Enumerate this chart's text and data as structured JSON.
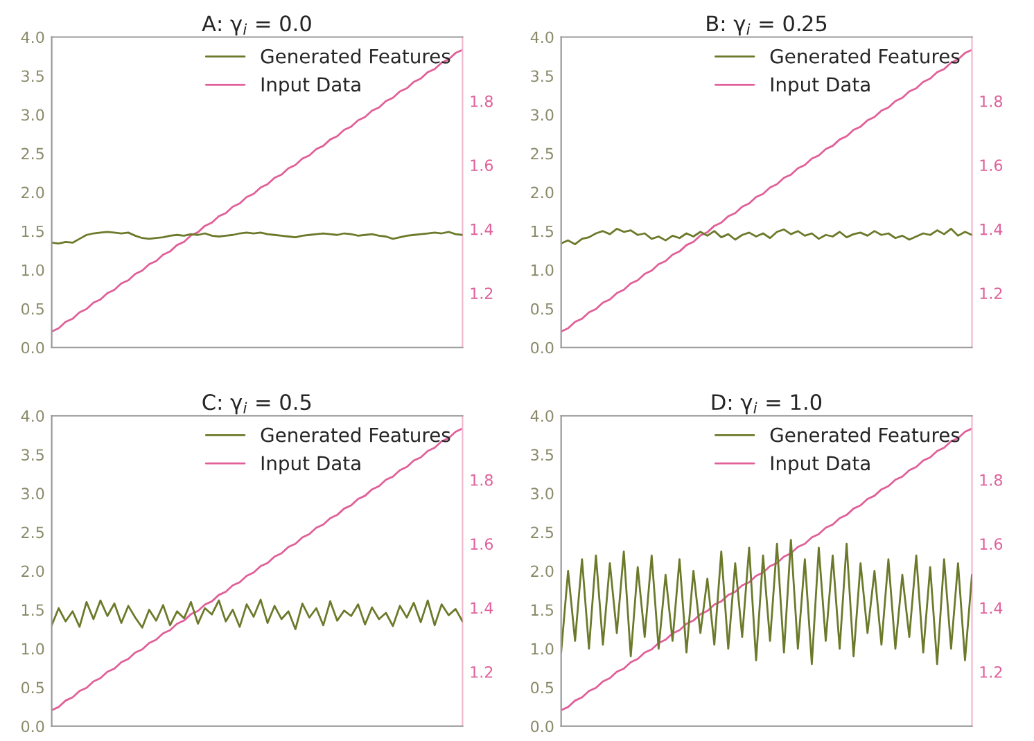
{
  "chart_data": [
    {
      "type": "line",
      "title": "A: γ$_{i}$ = 0.0",
      "legend": "top right",
      "categories": [
        null,
        null,
        null,
        null,
        null,
        null,
        null,
        null,
        null,
        null,
        null,
        null,
        null,
        null,
        null,
        null,
        null,
        null,
        null,
        null,
        null,
        null,
        null,
        null,
        null,
        null,
        null,
        null,
        null,
        null,
        null,
        null,
        null,
        null,
        null,
        null,
        null,
        null,
        null,
        null,
        null,
        null,
        null,
        null,
        null,
        null,
        null,
        null,
        null,
        null,
        null,
        null,
        null,
        null,
        null,
        null,
        null,
        null,
        null,
        null
      ],
      "series": [
        {
          "name": "Generated Features",
          "color": "#6b7a2a",
          "values": [
            1.35,
            1.34,
            1.36,
            1.35,
            1.4,
            1.45,
            1.47,
            1.48,
            1.49,
            1.48,
            1.47,
            1.48,
            1.44,
            1.41,
            1.4,
            1.41,
            1.42,
            1.44,
            1.45,
            1.44,
            1.46,
            1.45,
            1.47,
            1.44,
            1.43,
            1.44,
            1.45,
            1.47,
            1.48,
            1.47,
            1.48,
            1.46,
            1.45,
            1.44,
            1.43,
            1.42,
            1.44,
            1.45,
            1.46,
            1.47,
            1.46,
            1.45,
            1.47,
            1.46,
            1.44,
            1.45,
            1.46,
            1.44,
            1.43,
            1.4,
            1.42,
            1.44,
            1.45,
            1.46,
            1.47,
            1.48,
            1.47,
            1.49,
            1.46,
            1.45
          ]
        },
        {
          "name": "Input Data",
          "color": "#e0609a",
          "axis": "y2",
          "values": [
            1.08,
            1.09,
            1.11,
            1.12,
            1.14,
            1.15,
            1.17,
            1.18,
            1.2,
            1.21,
            1.23,
            1.24,
            1.26,
            1.27,
            1.29,
            1.3,
            1.32,
            1.33,
            1.35,
            1.36,
            1.38,
            1.39,
            1.41,
            1.42,
            1.44,
            1.45,
            1.47,
            1.48,
            1.5,
            1.51,
            1.53,
            1.54,
            1.56,
            1.57,
            1.59,
            1.6,
            1.62,
            1.63,
            1.65,
            1.66,
            1.68,
            1.69,
            1.71,
            1.72,
            1.74,
            1.75,
            1.77,
            1.78,
            1.8,
            1.81,
            1.83,
            1.84,
            1.86,
            1.87,
            1.89,
            1.9,
            1.92,
            1.93,
            1.95,
            1.96
          ]
        }
      ],
      "ylim": [
        0,
        4
      ],
      "yticks": [
        {
          "value": 0,
          "label": "0.0"
        },
        {
          "value": 0.5,
          "label": "0.5"
        },
        {
          "value": 1,
          "label": "1.0"
        },
        {
          "value": 1.5,
          "label": "1.5"
        },
        {
          "value": 2,
          "label": "2.0"
        },
        {
          "value": 2.5,
          "label": "2.5"
        },
        {
          "value": 3,
          "label": "3.0"
        },
        {
          "value": 3.5,
          "label": "3.5"
        },
        {
          "value": 4,
          "label": "4.0"
        }
      ],
      "y2lim": [
        1.03,
        2.0
      ],
      "y2ticks": [
        1.2,
        1.4,
        1.6,
        1.8
      ]
    },
    {
      "type": "line",
      "title": "B: γ$_{i}$ = 0.25",
      "legend": "top right",
      "categories": [
        null,
        null,
        null,
        null,
        null,
        null,
        null,
        null,
        null,
        null,
        null,
        null,
        null,
        null,
        null,
        null,
        null,
        null,
        null,
        null,
        null,
        null,
        null,
        null,
        null,
        null,
        null,
        null,
        null,
        null,
        null,
        null,
        null,
        null,
        null,
        null,
        null,
        null,
        null,
        null,
        null,
        null,
        null,
        null,
        null,
        null,
        null,
        null,
        null,
        null,
        null,
        null,
        null,
        null,
        null,
        null,
        null,
        null,
        null,
        null
      ],
      "series": [
        {
          "name": "Generated Features",
          "color": "#6b7a2a",
          "values": [
            1.34,
            1.38,
            1.33,
            1.4,
            1.42,
            1.47,
            1.5,
            1.46,
            1.53,
            1.49,
            1.51,
            1.45,
            1.47,
            1.4,
            1.43,
            1.38,
            1.44,
            1.41,
            1.47,
            1.43,
            1.49,
            1.44,
            1.5,
            1.42,
            1.46,
            1.39,
            1.45,
            1.48,
            1.43,
            1.47,
            1.41,
            1.49,
            1.52,
            1.46,
            1.5,
            1.44,
            1.47,
            1.4,
            1.45,
            1.43,
            1.49,
            1.42,
            1.46,
            1.48,
            1.44,
            1.5,
            1.45,
            1.47,
            1.41,
            1.44,
            1.39,
            1.43,
            1.47,
            1.45,
            1.51,
            1.46,
            1.53,
            1.44,
            1.49,
            1.45
          ]
        },
        {
          "name": "Input Data",
          "color": "#e0609a",
          "axis": "y2",
          "values": [
            1.08,
            1.09,
            1.11,
            1.12,
            1.14,
            1.15,
            1.17,
            1.18,
            1.2,
            1.21,
            1.23,
            1.24,
            1.26,
            1.27,
            1.29,
            1.3,
            1.32,
            1.33,
            1.35,
            1.36,
            1.38,
            1.39,
            1.41,
            1.42,
            1.44,
            1.45,
            1.47,
            1.48,
            1.5,
            1.51,
            1.53,
            1.54,
            1.56,
            1.57,
            1.59,
            1.6,
            1.62,
            1.63,
            1.65,
            1.66,
            1.68,
            1.69,
            1.71,
            1.72,
            1.74,
            1.75,
            1.77,
            1.78,
            1.8,
            1.81,
            1.83,
            1.84,
            1.86,
            1.87,
            1.89,
            1.9,
            1.92,
            1.93,
            1.95,
            1.96
          ]
        }
      ],
      "ylim": [
        0,
        4
      ],
      "yticks": [
        {
          "value": 0,
          "label": "0.0"
        },
        {
          "value": 0.5,
          "label": "0.5"
        },
        {
          "value": 1,
          "label": "1.0"
        },
        {
          "value": 1.5,
          "label": "1.5"
        },
        {
          "value": 2,
          "label": "2.0"
        },
        {
          "value": 2.5,
          "label": "2.5"
        },
        {
          "value": 3,
          "label": "3.0"
        },
        {
          "value": 3.5,
          "label": "3.5"
        },
        {
          "value": 4,
          "label": "4.0"
        }
      ],
      "y2lim": [
        1.03,
        2.0
      ],
      "y2ticks": [
        1.2,
        1.4,
        1.6,
        1.8
      ]
    },
    {
      "type": "line",
      "title": "C: γ$_{i}$ = 0.5",
      "legend": "top right",
      "categories": [
        null,
        null,
        null,
        null,
        null,
        null,
        null,
        null,
        null,
        null,
        null,
        null,
        null,
        null,
        null,
        null,
        null,
        null,
        null,
        null,
        null,
        null,
        null,
        null,
        null,
        null,
        null,
        null,
        null,
        null,
        null,
        null,
        null,
        null,
        null,
        null,
        null,
        null,
        null,
        null,
        null,
        null,
        null,
        null,
        null,
        null,
        null,
        null,
        null,
        null,
        null,
        null,
        null,
        null,
        null,
        null,
        null,
        null,
        null,
        null
      ],
      "series": [
        {
          "name": "Generated Features",
          "color": "#6b7a2a",
          "values": [
            1.3,
            1.52,
            1.35,
            1.48,
            1.28,
            1.6,
            1.38,
            1.62,
            1.42,
            1.58,
            1.33,
            1.55,
            1.4,
            1.27,
            1.5,
            1.36,
            1.56,
            1.3,
            1.48,
            1.39,
            1.6,
            1.32,
            1.52,
            1.44,
            1.62,
            1.35,
            1.5,
            1.28,
            1.57,
            1.41,
            1.63,
            1.33,
            1.55,
            1.38,
            1.48,
            1.25,
            1.58,
            1.4,
            1.52,
            1.3,
            1.61,
            1.36,
            1.49,
            1.42,
            1.57,
            1.31,
            1.53,
            1.38,
            1.46,
            1.29,
            1.55,
            1.4,
            1.59,
            1.34,
            1.62,
            1.3,
            1.57,
            1.43,
            1.51,
            1.35
          ]
        },
        {
          "name": "Input Data",
          "color": "#e0609a",
          "axis": "y2",
          "values": [
            1.08,
            1.09,
            1.11,
            1.12,
            1.14,
            1.15,
            1.17,
            1.18,
            1.2,
            1.21,
            1.23,
            1.24,
            1.26,
            1.27,
            1.29,
            1.3,
            1.32,
            1.33,
            1.35,
            1.36,
            1.38,
            1.39,
            1.41,
            1.42,
            1.44,
            1.45,
            1.47,
            1.48,
            1.5,
            1.51,
            1.53,
            1.54,
            1.56,
            1.57,
            1.59,
            1.6,
            1.62,
            1.63,
            1.65,
            1.66,
            1.68,
            1.69,
            1.71,
            1.72,
            1.74,
            1.75,
            1.77,
            1.78,
            1.8,
            1.81,
            1.83,
            1.84,
            1.86,
            1.87,
            1.89,
            1.9,
            1.92,
            1.93,
            1.95,
            1.96
          ]
        }
      ],
      "ylim": [
        0,
        4
      ],
      "yticks": [
        {
          "value": 0,
          "label": "0.0"
        },
        {
          "value": 0.5,
          "label": "0.5"
        },
        {
          "value": 1,
          "label": "1.0"
        },
        {
          "value": 1.5,
          "label": "1.5"
        },
        {
          "value": 2,
          "label": "2.0"
        },
        {
          "value": 2.5,
          "label": "2.5"
        },
        {
          "value": 3,
          "label": "3.0"
        },
        {
          "value": 3.5,
          "label": "3.5"
        },
        {
          "value": 4,
          "label": "4.0"
        }
      ],
      "y2lim": [
        1.03,
        2.0
      ],
      "y2ticks": [
        1.2,
        1.4,
        1.6,
        1.8
      ]
    },
    {
      "type": "line",
      "title": "D: γ$_{i}$ = 1.0",
      "legend": "top right",
      "categories": [
        null,
        null,
        null,
        null,
        null,
        null,
        null,
        null,
        null,
        null,
        null,
        null,
        null,
        null,
        null,
        null,
        null,
        null,
        null,
        null,
        null,
        null,
        null,
        null,
        null,
        null,
        null,
        null,
        null,
        null,
        null,
        null,
        null,
        null,
        null,
        null,
        null,
        null,
        null,
        null,
        null,
        null,
        null,
        null,
        null,
        null,
        null,
        null,
        null,
        null,
        null,
        null,
        null,
        null,
        null,
        null,
        null,
        null,
        null,
        null
      ],
      "series": [
        {
          "name": "Generated Features",
          "color": "#6b7a2a",
          "values": [
            0.95,
            2.0,
            1.1,
            2.15,
            1.0,
            2.2,
            1.05,
            2.1,
            1.2,
            2.25,
            0.9,
            2.05,
            1.15,
            2.2,
            1.0,
            1.95,
            1.1,
            2.15,
            0.95,
            2.0,
            1.2,
            1.9,
            1.05,
            2.25,
            1.0,
            2.1,
            1.15,
            2.3,
            0.85,
            2.2,
            1.1,
            2.35,
            0.95,
            2.4,
            1.0,
            2.15,
            0.8,
            2.3,
            1.1,
            2.2,
            1.0,
            2.35,
            0.9,
            2.1,
            1.2,
            2.0,
            1.05,
            2.15,
            1.0,
            1.95,
            1.15,
            2.2,
            0.95,
            2.05,
            0.8,
            2.15,
            1.0,
            2.1,
            0.85,
            1.95
          ]
        },
        {
          "name": "Input Data",
          "color": "#e0609a",
          "axis": "y2",
          "values": [
            1.08,
            1.09,
            1.11,
            1.12,
            1.14,
            1.15,
            1.17,
            1.18,
            1.2,
            1.21,
            1.23,
            1.24,
            1.26,
            1.27,
            1.29,
            1.3,
            1.32,
            1.33,
            1.35,
            1.36,
            1.38,
            1.39,
            1.41,
            1.42,
            1.44,
            1.45,
            1.47,
            1.48,
            1.5,
            1.51,
            1.53,
            1.54,
            1.56,
            1.57,
            1.59,
            1.6,
            1.62,
            1.63,
            1.65,
            1.66,
            1.68,
            1.69,
            1.71,
            1.72,
            1.74,
            1.75,
            1.77,
            1.78,
            1.8,
            1.81,
            1.83,
            1.84,
            1.86,
            1.87,
            1.89,
            1.9,
            1.92,
            1.93,
            1.95,
            1.96
          ]
        }
      ],
      "ylim": [
        0,
        4
      ],
      "yticks": [
        {
          "value": 0,
          "label": "0.0"
        },
        {
          "value": 0.5,
          "label": "0.5"
        },
        {
          "value": 1,
          "label": "1.0"
        },
        {
          "value": 1.5,
          "label": "1.5"
        },
        {
          "value": 2,
          "label": "2.0"
        },
        {
          "value": 2.5,
          "label": "2.5"
        },
        {
          "value": 3,
          "label": "3.0"
        },
        {
          "value": 3.5,
          "label": "3.5"
        },
        {
          "value": 4,
          "label": "4.0"
        }
      ],
      "y2lim": [
        1.03,
        2.0
      ],
      "y2ticks": [
        1.2,
        1.4,
        1.6,
        1.8
      ]
    }
  ]
}
